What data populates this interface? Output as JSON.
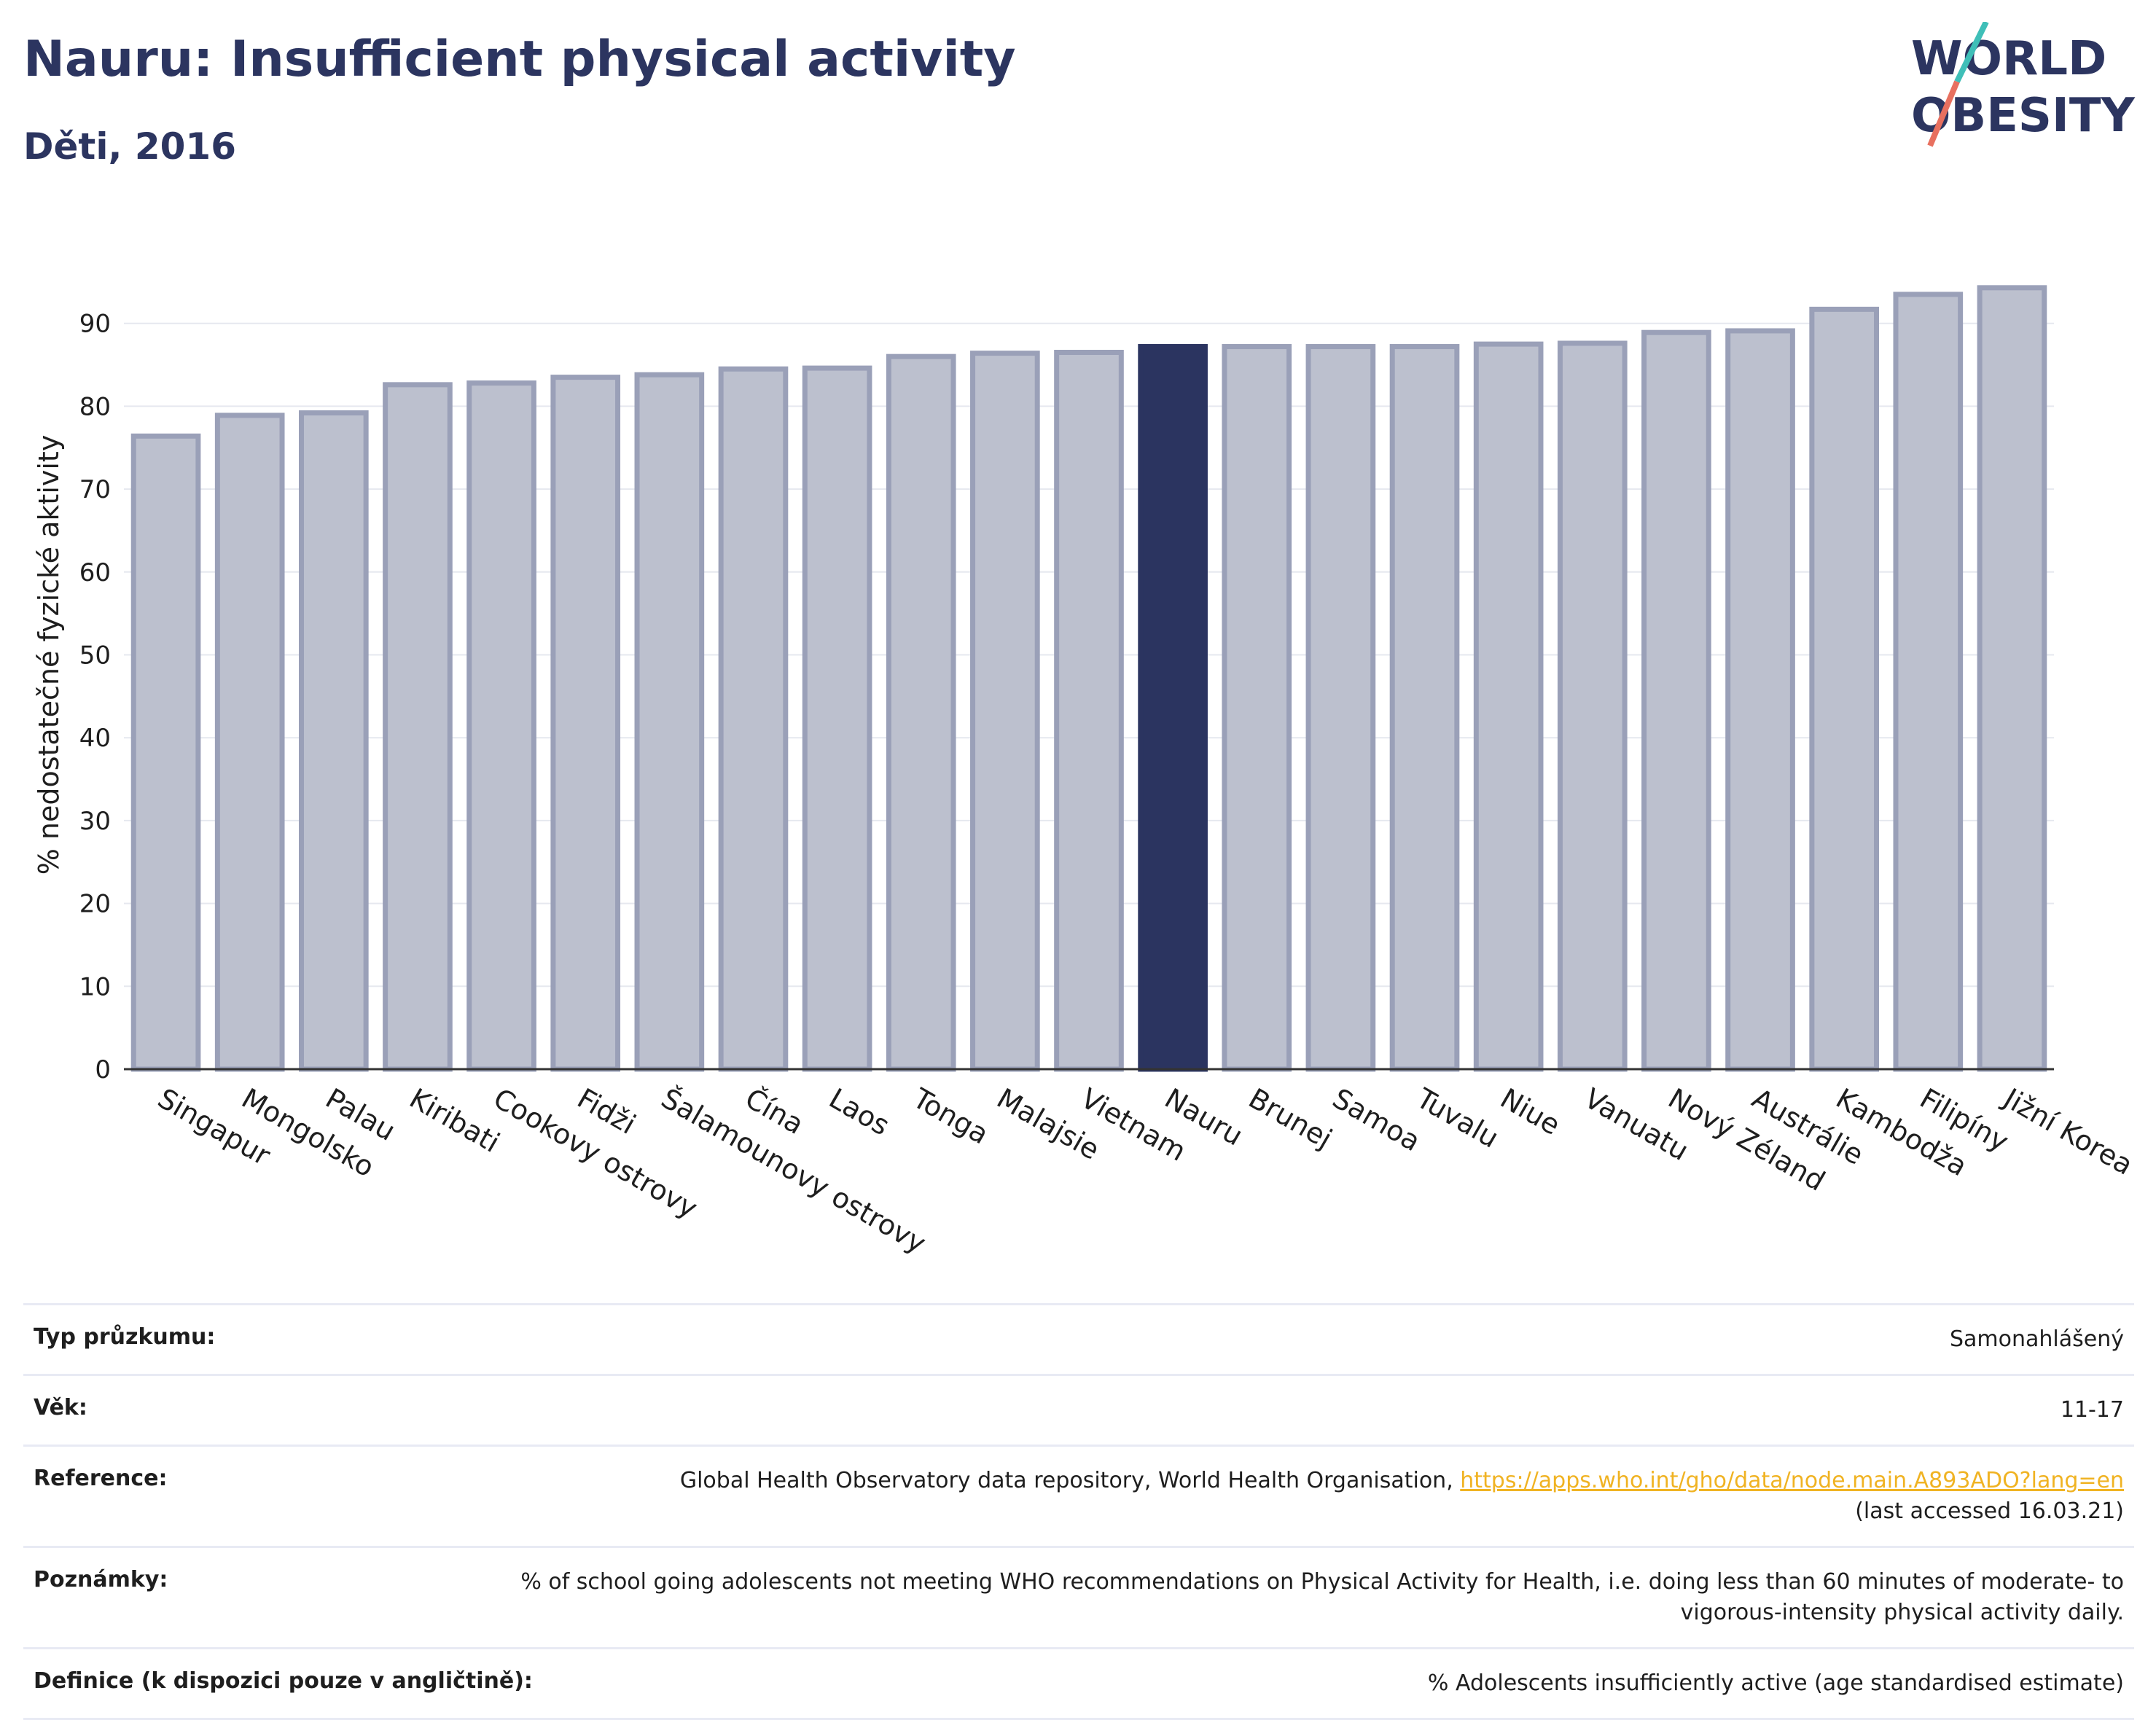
{
  "header": {
    "title": "Nauru: Insufficient physical activity",
    "subtitle": "Děti, 2016"
  },
  "logo": {
    "line1": "WORLD",
    "line2": "OBESITY"
  },
  "chart_data": {
    "type": "bar",
    "ylabel": "% nedostatečné fyzické aktivity",
    "ylim": [
      0,
      100
    ],
    "yticks": [
      0,
      10,
      20,
      30,
      40,
      50,
      60,
      70,
      80,
      90
    ],
    "grid": true,
    "categories": [
      "Singapur",
      "Mongolsko",
      "Palau",
      "Kiribati",
      "Cookovy ostrovy",
      "Fidži",
      "Šalamounovy ostrovy",
      "Čína",
      "Laos",
      "Tonga",
      "Malajsie",
      "Vietnam",
      "Nauru",
      "Brunej",
      "Samoa",
      "Tuvalu",
      "Niue",
      "Vanuatu",
      "Nový Zéland",
      "Austrálie",
      "Kambodža",
      "Filipíny",
      "Jižní Korea"
    ],
    "values": [
      76.4,
      78.9,
      79.2,
      82.6,
      82.8,
      83.5,
      83.8,
      84.5,
      84.6,
      86.0,
      86.4,
      86.5,
      87.2,
      87.2,
      87.2,
      87.2,
      87.5,
      87.6,
      88.9,
      89.1,
      91.7,
      93.5,
      94.3
    ],
    "highlight": "Nauru",
    "colors": {
      "default_fill": "#bcc0ce",
      "default_stroke": "#9aa0b8",
      "highlight": "#2b3460"
    }
  },
  "meta": [
    {
      "label": "Typ průzkumu:",
      "value": "Samonahlášený"
    },
    {
      "label": "Věk:",
      "value": "11-17"
    },
    {
      "label": "Reference:",
      "value_pre": "Global Health Observatory data repository, World Health Organisation, ",
      "link": "https://apps.who.int/gho/data/node.main.A893ADO?lang=en",
      "value_post": "(last accessed 16.03.21)"
    },
    {
      "label": "Poznámky:",
      "value": "% of school going adolescents not meeting WHO recommendations on Physical Activity for Health, i.e. doing less than 60 minutes of moderate- to vigorous-intensity physical activity daily."
    },
    {
      "label": "Definice (k dispozici pouze v angličtině):",
      "value": "% Adolescents insufficiently active (age standardised estimate)"
    }
  ]
}
